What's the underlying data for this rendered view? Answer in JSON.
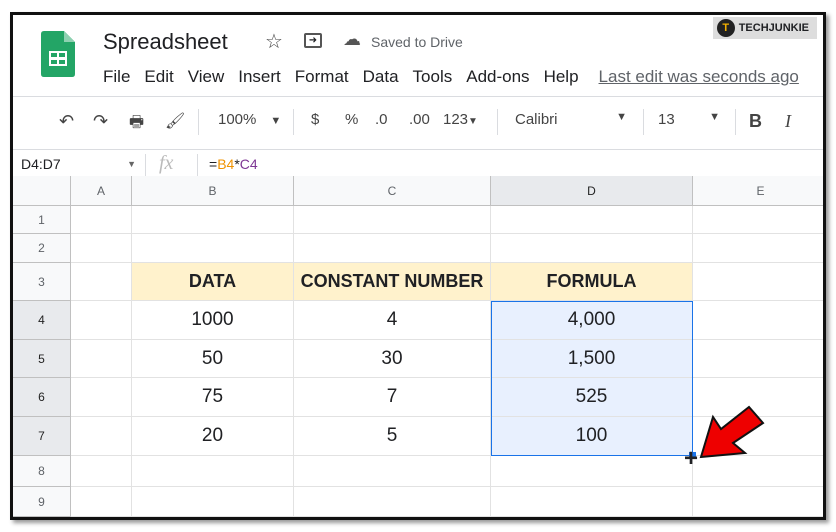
{
  "watermark": "TECHJUNKIE",
  "title": "Spreadsheet",
  "saved_status": "Saved to Drive",
  "menu": [
    "File",
    "Edit",
    "View",
    "Insert",
    "Format",
    "Data",
    "Tools",
    "Add-ons",
    "Help"
  ],
  "last_edit": "Last edit was seconds ago",
  "toolbar": {
    "zoom": "100%",
    "currency": "$",
    "percent": "%",
    "dec_decrease": ".0",
    "dec_increase": ".00",
    "more_formats": "123",
    "font": "Calibri",
    "font_size": "13",
    "bold": "B",
    "italic": "I"
  },
  "formula_bar": {
    "name_box": "D4:D7",
    "fx": "fx",
    "formula_eq": "=",
    "ref1": "B4",
    "op": "*",
    "ref2": "C4"
  },
  "colors": {
    "accent": "#1a73e8",
    "header_fill": "#fff2cc",
    "selection": "#e8f0fe",
    "ref1": "#f09300",
    "ref2": "#7e3794"
  },
  "columns": [
    "A",
    "B",
    "C",
    "D",
    "E"
  ],
  "rows": [
    "1",
    "2",
    "3",
    "4",
    "5",
    "6",
    "7",
    "8",
    "9"
  ],
  "table": {
    "headers": [
      "DATA",
      "CONSTANT NUMBER",
      "FORMULA"
    ],
    "rows": [
      [
        "1000",
        "4",
        "4,000"
      ],
      [
        "50",
        "30",
        "1,500"
      ],
      [
        "75",
        "7",
        "525"
      ],
      [
        "20",
        "5",
        "100"
      ]
    ]
  },
  "annotation": "red-arrow pointing to fill handle"
}
